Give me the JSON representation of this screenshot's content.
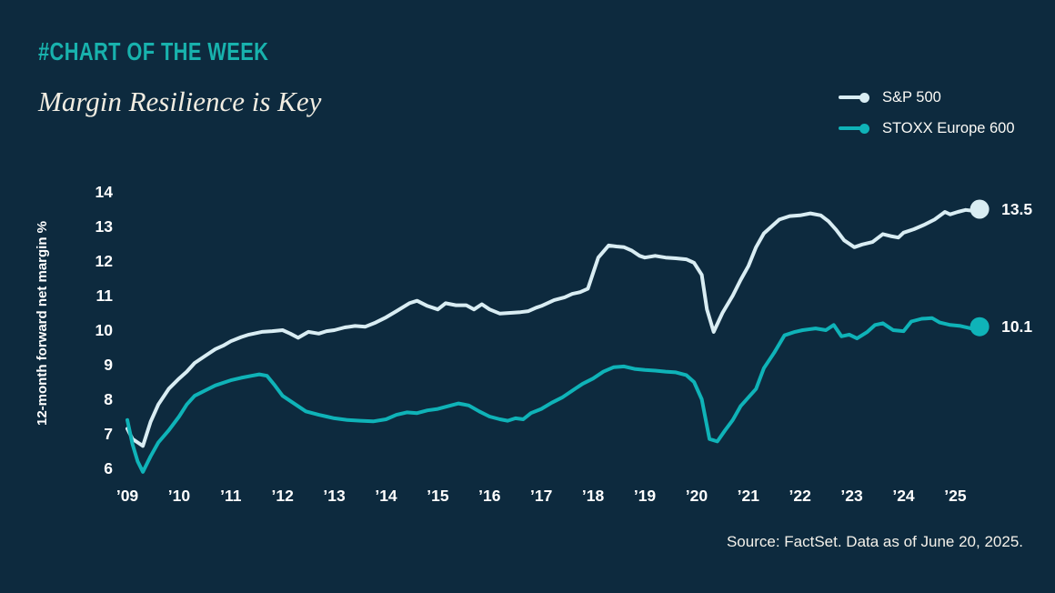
{
  "page": {
    "background_color": "#0d2a3e"
  },
  "header": {
    "kicker": "#CHART OF THE WEEK",
    "kicker_color": "#18b2ad",
    "title": "Margin Resilience is Key"
  },
  "legend": [
    {
      "label": "S&P 500",
      "color": "#d9edf3"
    },
    {
      "label": "STOXX Europe 600",
      "color": "#0fb3b8"
    }
  ],
  "source_note": "Source: FactSet. Data as of June 20, 2025.",
  "chart_data": {
    "type": "line",
    "title": "Margin Resilience is Key",
    "xlabel": "",
    "ylabel": "12-month forward net margin %",
    "ylim": [
      6,
      14
    ],
    "y_ticks": [
      14,
      13,
      12,
      11,
      10,
      9,
      8,
      7,
      6
    ],
    "x_range": [
      2009,
      2025.47
    ],
    "x_tick_labels": [
      "’09",
      "’10",
      "’11",
      "’12",
      "’13",
      "’14",
      "’15",
      "’16",
      "’17",
      "’18",
      "’19",
      "’20",
      "’21",
      "’22",
      "’23",
      "’24",
      "’25"
    ],
    "x_tick_years": [
      2009,
      2010,
      2011,
      2012,
      2013,
      2014,
      2015,
      2016,
      2017,
      2018,
      2019,
      2020,
      2021,
      2022,
      2023,
      2024,
      2025
    ],
    "grid": false,
    "legend_position": "top-right",
    "series": [
      {
        "name": "S&P 500",
        "color": "#d9edf3",
        "end_label": "13.5",
        "end_value": 13.5,
        "points": [
          [
            2009.0,
            7.15
          ],
          [
            2009.1,
            6.85
          ],
          [
            2009.2,
            6.75
          ],
          [
            2009.3,
            6.65
          ],
          [
            2009.45,
            7.35
          ],
          [
            2009.6,
            7.85
          ],
          [
            2009.8,
            8.3
          ],
          [
            2010.0,
            8.6
          ],
          [
            2010.15,
            8.8
          ],
          [
            2010.3,
            9.05
          ],
          [
            2010.5,
            9.25
          ],
          [
            2010.7,
            9.45
          ],
          [
            2010.85,
            9.55
          ],
          [
            2011.0,
            9.68
          ],
          [
            2011.2,
            9.8
          ],
          [
            2011.35,
            9.87
          ],
          [
            2011.6,
            9.95
          ],
          [
            2011.8,
            9.97
          ],
          [
            2012.0,
            10.0
          ],
          [
            2012.15,
            9.9
          ],
          [
            2012.3,
            9.78
          ],
          [
            2012.5,
            9.95
          ],
          [
            2012.7,
            9.9
          ],
          [
            2012.85,
            9.97
          ],
          [
            2013.0,
            10.0
          ],
          [
            2013.2,
            10.08
          ],
          [
            2013.4,
            10.12
          ],
          [
            2013.6,
            10.1
          ],
          [
            2013.8,
            10.22
          ],
          [
            2014.0,
            10.37
          ],
          [
            2014.2,
            10.55
          ],
          [
            2014.45,
            10.78
          ],
          [
            2014.6,
            10.85
          ],
          [
            2014.8,
            10.7
          ],
          [
            2015.0,
            10.6
          ],
          [
            2015.15,
            10.78
          ],
          [
            2015.35,
            10.72
          ],
          [
            2015.55,
            10.72
          ],
          [
            2015.7,
            10.6
          ],
          [
            2015.85,
            10.75
          ],
          [
            2016.0,
            10.6
          ],
          [
            2016.2,
            10.48
          ],
          [
            2016.4,
            10.5
          ],
          [
            2016.6,
            10.52
          ],
          [
            2016.75,
            10.55
          ],
          [
            2016.9,
            10.65
          ],
          [
            2017.0,
            10.7
          ],
          [
            2017.25,
            10.87
          ],
          [
            2017.45,
            10.95
          ],
          [
            2017.6,
            11.05
          ],
          [
            2017.75,
            11.1
          ],
          [
            2017.9,
            11.2
          ],
          [
            2018.0,
            11.65
          ],
          [
            2018.1,
            12.1
          ],
          [
            2018.3,
            12.45
          ],
          [
            2018.45,
            12.42
          ],
          [
            2018.6,
            12.4
          ],
          [
            2018.75,
            12.3
          ],
          [
            2018.9,
            12.15
          ],
          [
            2019.0,
            12.1
          ],
          [
            2019.2,
            12.15
          ],
          [
            2019.4,
            12.1
          ],
          [
            2019.6,
            12.08
          ],
          [
            2019.8,
            12.05
          ],
          [
            2019.95,
            11.95
          ],
          [
            2020.1,
            11.6
          ],
          [
            2020.2,
            10.6
          ],
          [
            2020.33,
            9.95
          ],
          [
            2020.5,
            10.5
          ],
          [
            2020.7,
            11.0
          ],
          [
            2020.85,
            11.45
          ],
          [
            2021.0,
            11.85
          ],
          [
            2021.15,
            12.4
          ],
          [
            2021.3,
            12.8
          ],
          [
            2021.45,
            13.0
          ],
          [
            2021.6,
            13.2
          ],
          [
            2021.8,
            13.3
          ],
          [
            2022.0,
            13.32
          ],
          [
            2022.2,
            13.38
          ],
          [
            2022.4,
            13.32
          ],
          [
            2022.55,
            13.15
          ],
          [
            2022.7,
            12.9
          ],
          [
            2022.85,
            12.6
          ],
          [
            2023.05,
            12.4
          ],
          [
            2023.2,
            12.48
          ],
          [
            2023.4,
            12.55
          ],
          [
            2023.6,
            12.78
          ],
          [
            2023.75,
            12.72
          ],
          [
            2023.9,
            12.68
          ],
          [
            2024.0,
            12.82
          ],
          [
            2024.2,
            12.92
          ],
          [
            2024.4,
            13.05
          ],
          [
            2024.6,
            13.2
          ],
          [
            2024.8,
            13.42
          ],
          [
            2024.9,
            13.35
          ],
          [
            2025.05,
            13.42
          ],
          [
            2025.2,
            13.48
          ],
          [
            2025.35,
            13.45
          ],
          [
            2025.47,
            13.5
          ]
        ]
      },
      {
        "name": "STOXX Europe 600",
        "color": "#0fb3b8",
        "end_label": "10.1",
        "end_value": 10.1,
        "points": [
          [
            2009.0,
            7.4
          ],
          [
            2009.1,
            6.7
          ],
          [
            2009.2,
            6.2
          ],
          [
            2009.3,
            5.9
          ],
          [
            2009.45,
            6.35
          ],
          [
            2009.6,
            6.75
          ],
          [
            2009.8,
            7.1
          ],
          [
            2010.0,
            7.5
          ],
          [
            2010.15,
            7.85
          ],
          [
            2010.3,
            8.1
          ],
          [
            2010.5,
            8.25
          ],
          [
            2010.7,
            8.4
          ],
          [
            2010.9,
            8.5
          ],
          [
            2011.0,
            8.55
          ],
          [
            2011.2,
            8.62
          ],
          [
            2011.4,
            8.68
          ],
          [
            2011.55,
            8.72
          ],
          [
            2011.7,
            8.68
          ],
          [
            2011.85,
            8.4
          ],
          [
            2012.0,
            8.1
          ],
          [
            2012.2,
            7.9
          ],
          [
            2012.45,
            7.65
          ],
          [
            2012.7,
            7.55
          ],
          [
            2012.85,
            7.5
          ],
          [
            2013.0,
            7.45
          ],
          [
            2013.25,
            7.4
          ],
          [
            2013.5,
            7.38
          ],
          [
            2013.75,
            7.36
          ],
          [
            2014.0,
            7.42
          ],
          [
            2014.2,
            7.55
          ],
          [
            2014.4,
            7.62
          ],
          [
            2014.6,
            7.6
          ],
          [
            2014.8,
            7.68
          ],
          [
            2015.0,
            7.72
          ],
          [
            2015.2,
            7.8
          ],
          [
            2015.4,
            7.88
          ],
          [
            2015.6,
            7.82
          ],
          [
            2015.8,
            7.65
          ],
          [
            2016.0,
            7.5
          ],
          [
            2016.2,
            7.42
          ],
          [
            2016.35,
            7.38
          ],
          [
            2016.5,
            7.45
          ],
          [
            2016.65,
            7.42
          ],
          [
            2016.8,
            7.6
          ],
          [
            2017.0,
            7.72
          ],
          [
            2017.2,
            7.9
          ],
          [
            2017.4,
            8.05
          ],
          [
            2017.6,
            8.25
          ],
          [
            2017.8,
            8.45
          ],
          [
            2018.0,
            8.6
          ],
          [
            2018.2,
            8.8
          ],
          [
            2018.4,
            8.93
          ],
          [
            2018.6,
            8.95
          ],
          [
            2018.8,
            8.88
          ],
          [
            2019.0,
            8.85
          ],
          [
            2019.2,
            8.83
          ],
          [
            2019.4,
            8.8
          ],
          [
            2019.6,
            8.78
          ],
          [
            2019.8,
            8.7
          ],
          [
            2019.95,
            8.5
          ],
          [
            2020.1,
            8.0
          ],
          [
            2020.25,
            6.85
          ],
          [
            2020.4,
            6.78
          ],
          [
            2020.55,
            7.1
          ],
          [
            2020.7,
            7.4
          ],
          [
            2020.85,
            7.8
          ],
          [
            2021.0,
            8.05
          ],
          [
            2021.15,
            8.3
          ],
          [
            2021.3,
            8.9
          ],
          [
            2021.5,
            9.35
          ],
          [
            2021.7,
            9.85
          ],
          [
            2021.9,
            9.95
          ],
          [
            2022.05,
            10.0
          ],
          [
            2022.3,
            10.05
          ],
          [
            2022.5,
            10.0
          ],
          [
            2022.65,
            10.15
          ],
          [
            2022.8,
            9.82
          ],
          [
            2022.95,
            9.87
          ],
          [
            2023.1,
            9.76
          ],
          [
            2023.3,
            9.95
          ],
          [
            2023.45,
            10.15
          ],
          [
            2023.6,
            10.2
          ],
          [
            2023.8,
            10.0
          ],
          [
            2024.0,
            9.97
          ],
          [
            2024.15,
            10.25
          ],
          [
            2024.35,
            10.33
          ],
          [
            2024.55,
            10.35
          ],
          [
            2024.7,
            10.22
          ],
          [
            2024.9,
            10.15
          ],
          [
            2025.1,
            10.12
          ],
          [
            2025.3,
            10.05
          ],
          [
            2025.47,
            10.1
          ]
        ]
      }
    ]
  }
}
